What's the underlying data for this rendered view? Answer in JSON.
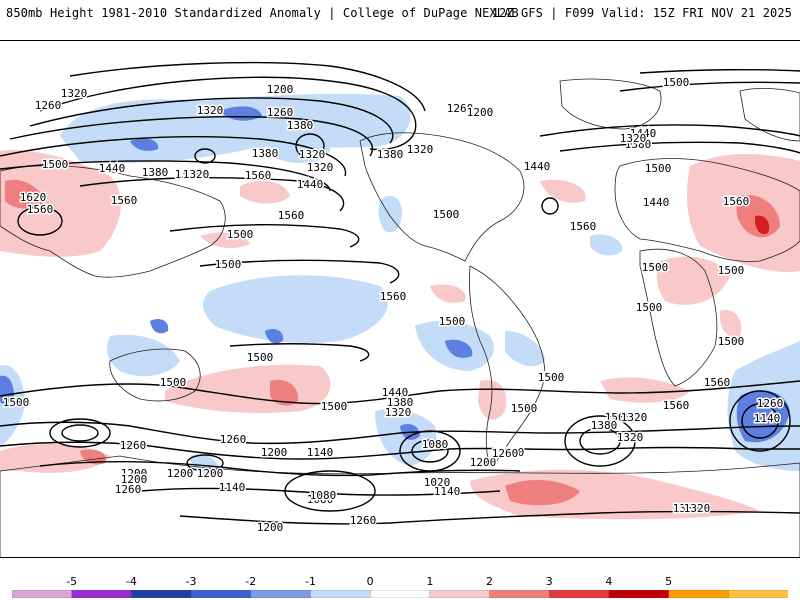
{
  "header": {
    "left": "850mb Height 1981-2010 Standardized Anomaly | College of DuPage NEXLAB",
    "right": "12Z GFS | F099 Valid: 15Z FRI NOV 21 2025"
  },
  "contour_labels": [
    "1320",
    "1260",
    "1200",
    "1260",
    "1320",
    "1380",
    "1320",
    "1320",
    "1380",
    "1260",
    "1200",
    "1380",
    "1320",
    "1320",
    "1500",
    "1440",
    "1380",
    "1320",
    "1500",
    "1440",
    "1440",
    "1500",
    "1620",
    "1560",
    "1560",
    "1560",
    "1560",
    "1500",
    "1560",
    "1440",
    "1560",
    "1500",
    "1560",
    "1500",
    "1500",
    "1500",
    "1500",
    "1500",
    "1500",
    "1500",
    "1500",
    "1500",
    "1500",
    "1560",
    "1440",
    "1380",
    "1320",
    "1500",
    "1560",
    "1500",
    "1500",
    "1320",
    "1380",
    "1320",
    "1260",
    "1260",
    "1140",
    "1440",
    "1380",
    "1320",
    "1260",
    "1200",
    "1200",
    "1140",
    "1200",
    "1080",
    "1080",
    "1020",
    "1140",
    "1200",
    "1260",
    "1200",
    "1260",
    "1380",
    "1260",
    "1200",
    "1140",
    "1080",
    "1200",
    "1260",
    "1320"
  ],
  "colorbar": {
    "ticks": [
      "-5",
      "-4",
      "-3",
      "-2",
      "-1",
      "0",
      "1",
      "2",
      "3",
      "4",
      "5"
    ],
    "colors": [
      "#d9a7d9",
      "#9b2ad1",
      "#1f3fa8",
      "#3d5fd8",
      "#7a9be8",
      "#c4dcf7",
      "#ffffff",
      "#f9c8c8",
      "#ef7f7f",
      "#e23c3c",
      "#c00000",
      "#ff9a00",
      "#ffbf40"
    ]
  }
}
